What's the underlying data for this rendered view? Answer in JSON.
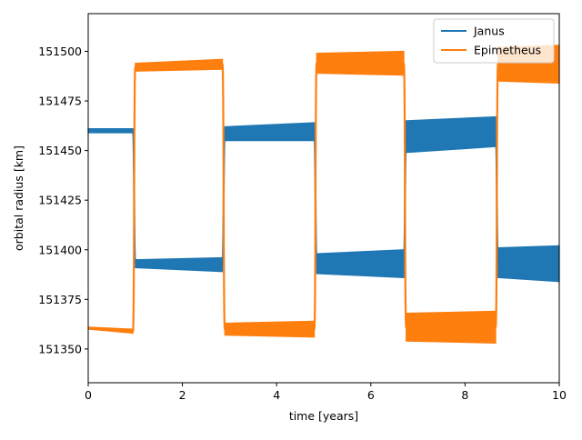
{
  "chart_data": {
    "type": "area",
    "xlabel": "time [years]",
    "ylabel": "orbital radius [km]",
    "xlim": [
      0,
      10
    ],
    "ylim": [
      151333,
      151519
    ],
    "xticks": [
      0,
      2,
      4,
      6,
      8,
      10
    ],
    "yticks": [
      151350,
      151375,
      151400,
      151425,
      151450,
      151475,
      151500
    ],
    "grid": false,
    "legend_position": "top-right",
    "series": [
      {
        "name": "Janus",
        "color": "#1f77b4",
        "bands": [
          {
            "x": [
              0,
              0.95
            ],
            "low": [
              151459,
              151459
            ],
            "high": [
              151461,
              151461
            ]
          },
          {
            "x": [
              1.0,
              2.85
            ],
            "low": [
              151391,
              151389
            ],
            "high": [
              151395,
              151396
            ]
          },
          {
            "x": [
              2.9,
              4.8
            ],
            "low": [
              151455,
              151455
            ],
            "high": [
              151462,
              151464
            ]
          },
          {
            "x": [
              4.85,
              6.7
            ],
            "low": [
              151388,
              151386
            ],
            "high": [
              151398,
              151400
            ]
          },
          {
            "x": [
              6.75,
              8.65
            ],
            "low": [
              151449,
              151452
            ],
            "high": [
              151465,
              151467
            ]
          },
          {
            "x": [
              8.7,
              10
            ],
            "low": [
              151386,
              151384
            ],
            "high": [
              151401,
              151402
            ]
          }
        ]
      },
      {
        "name": "Epimetheus",
        "color": "#ff7f0e",
        "bands": [
          {
            "x": [
              0,
              0.95
            ],
            "low": [
              151360,
              151358
            ],
            "high": [
              151361,
              151360
            ]
          },
          {
            "x": [
              1.0,
              2.85
            ],
            "low": [
              151490,
              151491
            ],
            "high": [
              151494,
              151496
            ]
          },
          {
            "x": [
              2.9,
              4.8
            ],
            "low": [
              151357,
              151356
            ],
            "high": [
              151363,
              151364
            ]
          },
          {
            "x": [
              4.85,
              6.7
            ],
            "low": [
              151489,
              151488
            ],
            "high": [
              151499,
              151500
            ]
          },
          {
            "x": [
              6.75,
              8.65
            ],
            "low": [
              151354,
              151353
            ],
            "high": [
              151368,
              151369
            ]
          },
          {
            "x": [
              8.7,
              10
            ],
            "low": [
              151485,
              151484
            ],
            "high": [
              151502,
              151503
            ]
          }
        ]
      }
    ]
  }
}
